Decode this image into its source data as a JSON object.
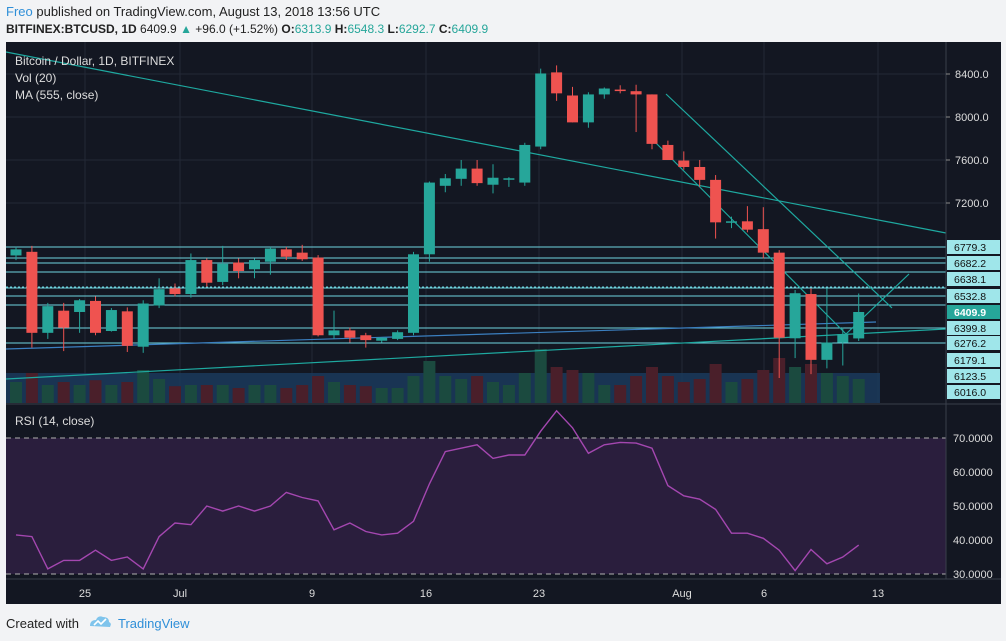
{
  "header": {
    "user": "Freo",
    "published_text": "published on TradingView.com, August 13, 2018 13:56 UTC",
    "symbol": "BITFINEX:BTCUSD, 1D",
    "last": "6409.9",
    "change_arrow": "▲",
    "change": "+96.0 (+1.52%)",
    "o_label": "O:",
    "o": "6313.9",
    "h_label": "H:",
    "h": "6548.3",
    "l_label": "L:",
    "l": "6292.7",
    "c_label": "C:",
    "c": "6409.9"
  },
  "legend": {
    "title": "Bitcoin / Dollar, 1D, BITFINEX",
    "vol": "Vol (20)",
    "ma": "MA (555, close)",
    "rsi": "RSI (14, close)"
  },
  "footer": {
    "created_with": "Created with",
    "brand": "TradingView"
  },
  "colors": {
    "up": "#26a69a",
    "down": "#ef5350",
    "background": "#131722",
    "rsi_line": "#a447b0",
    "rsi_band": "#2a1e3d",
    "trendline": "#1ea9a0",
    "hline": "#6fd5e0",
    "axis_text": "#dddddd",
    "price_tag": "#26a69a",
    "brand": "#2f8fd8"
  },
  "chart_data": {
    "type": "candlestick",
    "title": "Bitcoin / Dollar, 1D, BITFINEX",
    "price_axis_ticks": [
      8400.0,
      8000.0,
      7600.0,
      7200.0
    ],
    "horizontal_levels": [
      "6779.3",
      "6682.2",
      "6638.1",
      "6532.8",
      "6399.8",
      "6276.2",
      "6179.1",
      "6123.5",
      "6016.0"
    ],
    "last_price_tag": "6409.9",
    "x_tick_labels": [
      "25",
      "Jul",
      "9",
      "16",
      "23",
      "Aug",
      "6",
      "13"
    ],
    "candles": [
      {
        "o": 6728,
        "h": 6780,
        "l": 6700,
        "c": 6765
      },
      {
        "o": 6750,
        "h": 6790,
        "l": 6250,
        "c": 6360
      },
      {
        "o": 6360,
        "h": 6480,
        "l": 6310,
        "c": 6455
      },
      {
        "o": 6420,
        "h": 6480,
        "l": 6230,
        "c": 6400
      },
      {
        "o": 6410,
        "h": 6510,
        "l": 6360,
        "c": 6500
      },
      {
        "o": 6495,
        "h": 6530,
        "l": 6340,
        "c": 6360
      },
      {
        "o": 6375,
        "h": 6440,
        "l": 6370,
        "c": 6425
      },
      {
        "o": 6415,
        "h": 6445,
        "l": 6225,
        "c": 6260
      },
      {
        "o": 6255,
        "h": 6500,
        "l": 6220,
        "c": 6475
      },
      {
        "o": 6460,
        "h": 6640,
        "l": 6440,
        "c": 6575
      },
      {
        "o": 6580,
        "h": 6610,
        "l": 6530,
        "c": 6545
      },
      {
        "o": 6545,
        "h": 6740,
        "l": 6520,
        "c": 6700
      },
      {
        "o": 6700,
        "h": 6710,
        "l": 6590,
        "c": 6615
      },
      {
        "o": 6620,
        "h": 6790,
        "l": 6600,
        "c": 6680
      },
      {
        "o": 6685,
        "h": 6710,
        "l": 6640,
        "c": 6660
      },
      {
        "o": 6665,
        "h": 6710,
        "l": 6640,
        "c": 6700
      },
      {
        "o": 6690,
        "h": 6780,
        "l": 6650,
        "c": 6770
      },
      {
        "o": 6765,
        "h": 6780,
        "l": 6700,
        "c": 6720
      },
      {
        "o": 6745,
        "h": 6800,
        "l": 6695,
        "c": 6705
      },
      {
        "o": 6715,
        "h": 6730,
        "l": 6330,
        "c": 6340
      },
      {
        "o": 6340,
        "h": 6420,
        "l": 6310,
        "c": 6380
      },
      {
        "o": 6380,
        "h": 6400,
        "l": 6280,
        "c": 6320
      },
      {
        "o": 6340,
        "h": 6360,
        "l": 6250,
        "c": 6300
      },
      {
        "o": 6295,
        "h": 6325,
        "l": 6280,
        "c": 6320
      },
      {
        "o": 6310,
        "h": 6380,
        "l": 6300,
        "c": 6365
      },
      {
        "o": 6360,
        "h": 6750,
        "l": 6340,
        "c": 6735
      },
      {
        "o": 6735,
        "h": 7400,
        "l": 6690,
        "c": 7390
      },
      {
        "o": 7360,
        "h": 7470,
        "l": 7300,
        "c": 7430
      },
      {
        "o": 7425,
        "h": 7600,
        "l": 7360,
        "c": 7520
      },
      {
        "o": 7520,
        "h": 7600,
        "l": 7360,
        "c": 7385
      },
      {
        "o": 7370,
        "h": 7560,
        "l": 7290,
        "c": 7435
      },
      {
        "o": 7425,
        "h": 7440,
        "l": 7350,
        "c": 7430
      },
      {
        "o": 7390,
        "h": 7760,
        "l": 7360,
        "c": 7740
      },
      {
        "o": 7725,
        "h": 8450,
        "l": 7700,
        "c": 8405
      },
      {
        "o": 8415,
        "h": 8480,
        "l": 8150,
        "c": 8220
      },
      {
        "o": 8200,
        "h": 8280,
        "l": 7950,
        "c": 7950
      },
      {
        "o": 7950,
        "h": 8230,
        "l": 7900,
        "c": 8210
      },
      {
        "o": 8210,
        "h": 8275,
        "l": 8170,
        "c": 8265
      },
      {
        "o": 8255,
        "h": 8295,
        "l": 8220,
        "c": 8245
      },
      {
        "o": 8240,
        "h": 8300,
        "l": 7860,
        "c": 8210
      },
      {
        "o": 8210,
        "h": 8210,
        "l": 7700,
        "c": 7750
      },
      {
        "o": 7740,
        "h": 7780,
        "l": 7600,
        "c": 7600
      },
      {
        "o": 7595,
        "h": 7680,
        "l": 7510,
        "c": 7535
      },
      {
        "o": 7535,
        "h": 7600,
        "l": 7350,
        "c": 7415
      },
      {
        "o": 7415,
        "h": 7460,
        "l": 6860,
        "c": 7015
      },
      {
        "o": 7020,
        "h": 7070,
        "l": 6960,
        "c": 7025
      },
      {
        "o": 7025,
        "h": 7170,
        "l": 6920,
        "c": 6945
      },
      {
        "o": 6950,
        "h": 7160,
        "l": 6710,
        "c": 6745
      },
      {
        "o": 6745,
        "h": 6760,
        "l": 6110,
        "c": 6320
      },
      {
        "o": 6315,
        "h": 6570,
        "l": 6190,
        "c": 6550
      },
      {
        "o": 6545,
        "h": 6580,
        "l": 6130,
        "c": 6180
      },
      {
        "o": 6180,
        "h": 6580,
        "l": 6150,
        "c": 6280
      },
      {
        "o": 6280,
        "h": 6400,
        "l": 6160,
        "c": 6350
      },
      {
        "o": 6313.9,
        "h": 6548.3,
        "l": 6292.7,
        "c": 6409.9
      }
    ],
    "volume": [
      0.35,
      0.5,
      0.3,
      0.35,
      0.3,
      0.38,
      0.3,
      0.35,
      0.55,
      0.4,
      0.28,
      0.3,
      0.3,
      0.3,
      0.25,
      0.3,
      0.3,
      0.25,
      0.3,
      0.45,
      0.35,
      0.3,
      0.28,
      0.25,
      0.25,
      0.45,
      0.7,
      0.45,
      0.4,
      0.45,
      0.35,
      0.3,
      0.5,
      0.9,
      0.6,
      0.55,
      0.5,
      0.3,
      0.3,
      0.45,
      0.6,
      0.45,
      0.35,
      0.4,
      0.65,
      0.35,
      0.4,
      0.55,
      0.75,
      0.6,
      0.65,
      0.5,
      0.45,
      0.4
    ],
    "rsi_axis_ticks": [
      "70.0000",
      "60.0000",
      "50.0000",
      "40.0000",
      "30.0000"
    ],
    "rsi": [
      41.5,
      41,
      31.5,
      34,
      34,
      37,
      34,
      35,
      31.5,
      41,
      45,
      44.5,
      50,
      48.5,
      50,
      48.5,
      50,
      54,
      52.5,
      51.5,
      43,
      45,
      42.5,
      41.5,
      42,
      45.5,
      56.5,
      66,
      67,
      68,
      64,
      65,
      65,
      72,
      78,
      73,
      65.5,
      68,
      68.7,
      68.5,
      67,
      56,
      53,
      52,
      49,
      42,
      42,
      40.5,
      37,
      31,
      37.2,
      33,
      35,
      38.5
    ]
  }
}
